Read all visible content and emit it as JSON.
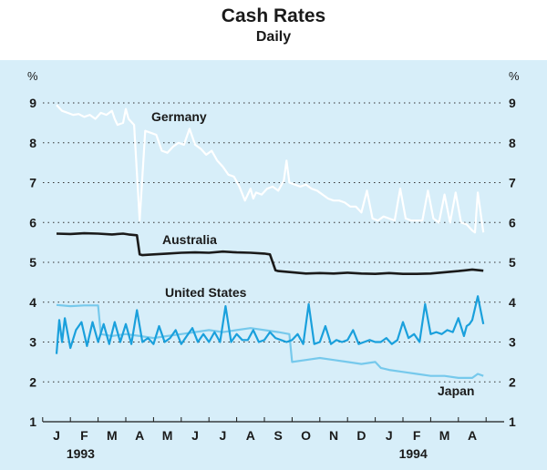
{
  "chart_data": {
    "type": "line",
    "title": "Cash Rates",
    "subtitle": "Daily",
    "ylabel_left": "%",
    "ylabel_right": "%",
    "ylim": [
      1,
      9
    ],
    "yticks": [
      1,
      2,
      3,
      4,
      5,
      6,
      7,
      8,
      9
    ],
    "x_months": [
      "J",
      "F",
      "M",
      "A",
      "M",
      "J",
      "J",
      "A",
      "S",
      "O",
      "N",
      "D",
      "J",
      "F",
      "M",
      "A"
    ],
    "year_labels": [
      {
        "label": "1993",
        "month_index": 1
      },
      {
        "label": "1994",
        "month_index": 13
      }
    ],
    "colors": {
      "background": "#d7eef9",
      "germany": "#ffffff",
      "australia": "#1a1a1a",
      "united_states": "#1aa0dc",
      "japan": "#76c9ec"
    },
    "series": [
      {
        "name": "Germany",
        "key": "germany",
        "x": [
          0,
          0.2,
          0.4,
          0.6,
          0.8,
          1.0,
          1.2,
          1.4,
          1.6,
          1.8,
          2.0,
          2.1,
          2.2,
          2.4,
          2.5,
          2.6,
          2.8,
          3.0,
          3.2,
          3.4,
          3.6,
          3.8,
          4.0,
          4.2,
          4.4,
          4.6,
          4.8,
          5.0,
          5.2,
          5.4,
          5.6,
          5.8,
          6.0,
          6.2,
          6.4,
          6.6,
          6.8,
          7.0,
          7.1,
          7.2,
          7.4,
          7.6,
          7.8,
          8.0,
          8.2,
          8.3,
          8.4,
          8.6,
          8.8,
          9.0,
          9.2,
          9.4,
          9.6,
          9.8,
          10.0,
          10.2,
          10.4,
          10.6,
          10.8,
          11.0,
          11.2,
          11.4,
          11.6,
          11.8,
          12.0,
          12.2,
          12.4,
          12.6,
          12.8,
          13.0,
          13.2,
          13.4,
          13.6,
          13.8,
          14.0,
          14.2,
          14.4,
          14.6,
          14.8,
          15.0,
          15.1,
          15.2,
          15.4
        ],
        "values": [
          8.95,
          8.8,
          8.75,
          8.7,
          8.72,
          8.65,
          8.7,
          8.6,
          8.75,
          8.7,
          8.8,
          8.6,
          8.45,
          8.5,
          8.85,
          8.6,
          8.45,
          6.05,
          8.3,
          8.25,
          8.2,
          7.8,
          7.75,
          7.9,
          8.0,
          7.95,
          8.35,
          7.95,
          7.85,
          7.7,
          7.8,
          7.55,
          7.4,
          7.2,
          7.15,
          6.9,
          6.55,
          6.85,
          6.6,
          6.75,
          6.7,
          6.85,
          6.9,
          6.8,
          7.05,
          7.55,
          7.0,
          6.95,
          6.9,
          6.95,
          6.85,
          6.8,
          6.7,
          6.6,
          6.55,
          6.55,
          6.5,
          6.4,
          6.4,
          6.25,
          6.8,
          6.1,
          6.05,
          6.15,
          6.1,
          6.05,
          6.85,
          6.1,
          6.05,
          6.05,
          6.05,
          6.8,
          6.1,
          6.0,
          6.7,
          6.0,
          6.75,
          6.0,
          5.95,
          5.8,
          5.75,
          6.75,
          5.75
        ]
      },
      {
        "name": "Australia",
        "key": "australia",
        "x": [
          0,
          0.5,
          1.0,
          1.5,
          2.0,
          2.4,
          2.6,
          2.9,
          3.0,
          3.1,
          3.5,
          4.0,
          4.5,
          5.0,
          5.5,
          6.0,
          6.5,
          7.0,
          7.5,
          7.7,
          7.9,
          8.0,
          8.5,
          9.0,
          9.5,
          10.0,
          10.5,
          11.0,
          11.5,
          12.0,
          12.5,
          13.0,
          13.5,
          14.0,
          14.5,
          15.0,
          15.4
        ],
        "values": [
          5.72,
          5.71,
          5.73,
          5.72,
          5.7,
          5.72,
          5.7,
          5.68,
          5.2,
          5.18,
          5.2,
          5.22,
          5.24,
          5.25,
          5.24,
          5.27,
          5.25,
          5.24,
          5.22,
          5.2,
          4.8,
          4.78,
          4.75,
          4.72,
          4.73,
          4.72,
          4.74,
          4.72,
          4.71,
          4.73,
          4.71,
          4.71,
          4.72,
          4.75,
          4.78,
          4.82,
          4.79
        ]
      },
      {
        "name": "United States",
        "key": "united_states",
        "x": [
          0,
          0.1,
          0.2,
          0.3,
          0.5,
          0.7,
          0.9,
          1.1,
          1.3,
          1.5,
          1.7,
          1.9,
          2.1,
          2.3,
          2.5,
          2.7,
          2.9,
          3.1,
          3.3,
          3.5,
          3.7,
          3.9,
          4.1,
          4.3,
          4.5,
          4.7,
          4.9,
          5.1,
          5.3,
          5.5,
          5.7,
          5.9,
          6.1,
          6.3,
          6.5,
          6.7,
          6.9,
          7.1,
          7.3,
          7.5,
          7.7,
          7.9,
          8.1,
          8.3,
          8.5,
          8.7,
          8.9,
          9.1,
          9.3,
          9.5,
          9.7,
          9.9,
          10.1,
          10.3,
          10.5,
          10.7,
          10.9,
          11.1,
          11.3,
          11.5,
          11.7,
          11.9,
          12.1,
          12.3,
          12.5,
          12.7,
          12.9,
          13.1,
          13.3,
          13.5,
          13.7,
          13.9,
          14.1,
          14.3,
          14.5,
          14.7,
          14.8,
          14.9,
          15.0,
          15.2,
          15.4
        ],
        "values": [
          2.7,
          3.55,
          3.0,
          3.6,
          2.85,
          3.3,
          3.5,
          2.9,
          3.5,
          3.0,
          3.45,
          2.95,
          3.5,
          3.0,
          3.45,
          2.95,
          3.8,
          3.0,
          3.1,
          2.95,
          3.4,
          3.0,
          3.1,
          3.3,
          2.95,
          3.15,
          3.35,
          3.0,
          3.2,
          3.0,
          3.25,
          3.0,
          3.9,
          3.0,
          3.2,
          3.05,
          3.05,
          3.3,
          3.0,
          3.05,
          3.25,
          3.1,
          3.05,
          3.0,
          3.05,
          3.2,
          2.95,
          3.95,
          2.95,
          3.0,
          3.4,
          2.95,
          3.05,
          3.0,
          3.05,
          3.3,
          2.95,
          3.0,
          3.05,
          3.0,
          3.0,
          3.1,
          2.95,
          3.05,
          3.5,
          3.1,
          3.2,
          3.0,
          3.95,
          3.2,
          3.25,
          3.2,
          3.3,
          3.25,
          3.6,
          3.15,
          3.4,
          3.45,
          3.55,
          4.15,
          3.45
        ]
      },
      {
        "name": "Japan",
        "key": "japan",
        "x": [
          0,
          0.5,
          1.0,
          1.5,
          1.6,
          2.0,
          2.5,
          3.0,
          3.5,
          4.0,
          4.5,
          5.0,
          5.5,
          6.0,
          6.5,
          7.0,
          7.5,
          8.0,
          8.4,
          8.5,
          9.0,
          9.5,
          10.0,
          10.5,
          11.0,
          11.5,
          11.7,
          12.0,
          12.5,
          13.0,
          13.5,
          14.0,
          14.5,
          15.0,
          15.2,
          15.4
        ],
        "values": [
          3.93,
          3.9,
          3.92,
          3.92,
          3.2,
          3.15,
          3.2,
          3.15,
          3.1,
          3.15,
          3.2,
          3.25,
          3.3,
          3.25,
          3.3,
          3.35,
          3.3,
          3.25,
          3.2,
          2.5,
          2.55,
          2.6,
          2.55,
          2.5,
          2.45,
          2.5,
          2.35,
          2.3,
          2.25,
          2.2,
          2.15,
          2.15,
          2.1,
          2.1,
          2.2,
          2.15
        ]
      }
    ],
    "labels": {
      "germany": "Germany",
      "australia": "Australia",
      "united_states": "United States",
      "japan": "Japan"
    }
  }
}
